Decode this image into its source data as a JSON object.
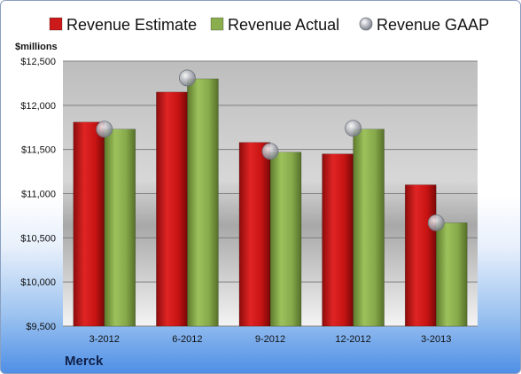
{
  "chart_data": {
    "type": "bar",
    "title": "",
    "ylabel": "$millions",
    "xlabel": "",
    "company": "Merck",
    "categories": [
      "3-2012",
      "6-2012",
      "9-2012",
      "12-2012",
      "3-2013"
    ],
    "series": [
      {
        "name": "Revenue Estimate",
        "kind": "bar",
        "color": "#cc1a1a",
        "values": [
          11810,
          12150,
          11580,
          11450,
          11100
        ]
      },
      {
        "name": "Revenue Actual",
        "kind": "bar",
        "color": "#8aad4e",
        "values": [
          11730,
          12300,
          11470,
          11730,
          10670
        ]
      },
      {
        "name": "Revenue GAAP",
        "kind": "marker",
        "color": "#b9bcc4",
        "values": [
          11730,
          12310,
          11480,
          11740,
          10670
        ]
      }
    ],
    "ylim": [
      9500,
      12500
    ],
    "yticks": [
      9500,
      10000,
      10500,
      11000,
      11500,
      12000,
      12500
    ],
    "ytick_labels": [
      "$9,500",
      "$10,000",
      "$10,500",
      "$11,000",
      "$11,500",
      "$12,000",
      "$12,500"
    ],
    "grid": true,
    "legend": "top"
  }
}
